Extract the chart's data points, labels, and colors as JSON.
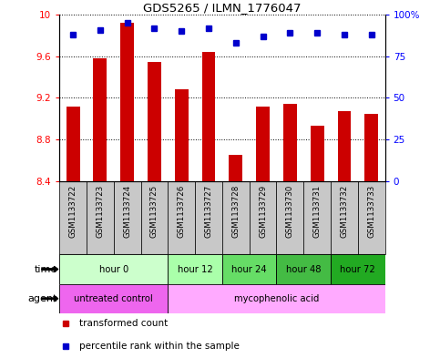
{
  "title": "GDS5265 / ILMN_1776047",
  "samples": [
    "GSM1133722",
    "GSM1133723",
    "GSM1133724",
    "GSM1133725",
    "GSM1133726",
    "GSM1133727",
    "GSM1133728",
    "GSM1133729",
    "GSM1133730",
    "GSM1133731",
    "GSM1133732",
    "GSM1133733"
  ],
  "bar_values": [
    9.12,
    9.58,
    9.92,
    9.55,
    9.28,
    9.64,
    8.65,
    9.12,
    9.14,
    8.93,
    9.07,
    9.05
  ],
  "percentile_values": [
    88,
    91,
    95,
    92,
    90,
    92,
    83,
    87,
    89,
    89,
    88,
    88
  ],
  "ylim_left": [
    8.4,
    10.0
  ],
  "ylim_right": [
    0,
    100
  ],
  "yticks_left": [
    8.4,
    8.8,
    9.2,
    9.6,
    10.0
  ],
  "ytick_labels_left": [
    "8.4",
    "8.8",
    "9.2",
    "9.6",
    "10"
  ],
  "yticks_right": [
    0,
    25,
    50,
    75,
    100
  ],
  "ytick_labels_right": [
    "0",
    "25",
    "50",
    "75",
    "100%"
  ],
  "bar_color": "#cc0000",
  "dot_color": "#0000cc",
  "time_groups": [
    {
      "label": "hour 0",
      "start": 0,
      "end": 3,
      "color": "#ccffcc"
    },
    {
      "label": "hour 12",
      "start": 4,
      "end": 5,
      "color": "#aaffaa"
    },
    {
      "label": "hour 24",
      "start": 6,
      "end": 7,
      "color": "#66dd66"
    },
    {
      "label": "hour 48",
      "start": 8,
      "end": 9,
      "color": "#44bb44"
    },
    {
      "label": "hour 72",
      "start": 10,
      "end": 11,
      "color": "#22aa22"
    }
  ],
  "agent_groups": [
    {
      "label": "untreated control",
      "start": 0,
      "end": 3,
      "color": "#ee66ee"
    },
    {
      "label": "mycophenolic acid",
      "start": 4,
      "end": 11,
      "color": "#ffaaff"
    }
  ],
  "legend_items": [
    {
      "label": "transformed count",
      "color": "#cc0000"
    },
    {
      "label": "percentile rank within the sample",
      "color": "#0000cc"
    }
  ],
  "sample_bg_color": "#c8c8c8",
  "bar_width": 0.5,
  "markersize": 4
}
